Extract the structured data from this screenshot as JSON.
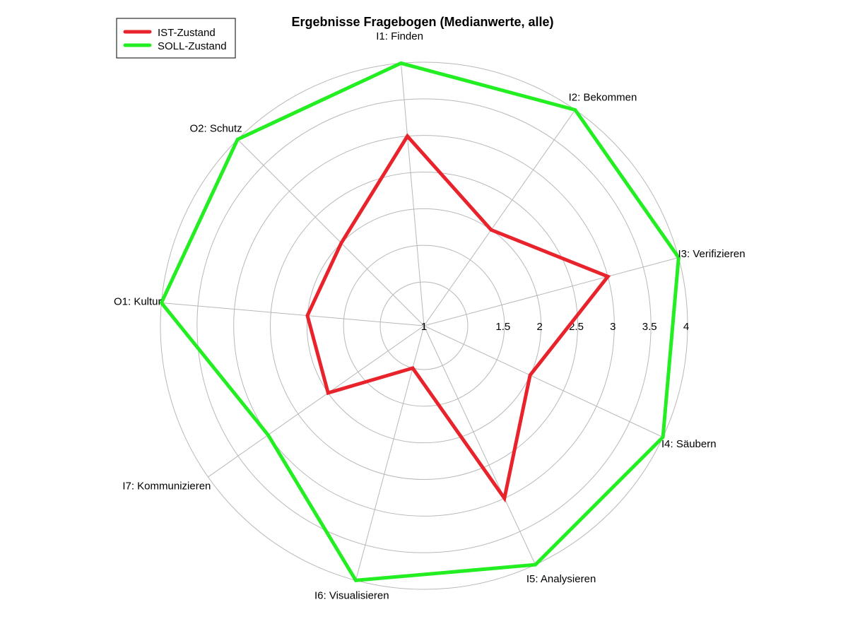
{
  "chart_data": {
    "type": "radar",
    "title": "Ergebnisse Fragebogen (Medianwerte, alle)",
    "categories": [
      "I1: Finden",
      "I2: Bekommen",
      "I3: Verifizieren",
      "I4: Säubern",
      "I5: Analysieren",
      "I6: Visualisieren",
      "I7: Kommunizieren",
      "O1: Kultur",
      "O2: Schutz"
    ],
    "r_range": [
      1,
      4
    ],
    "r_ticks": [
      "1",
      "1.5",
      "2",
      "2.5",
      "3",
      "3.5",
      "4"
    ],
    "grid": true,
    "legend": {
      "placement": "top-left"
    },
    "series": [
      {
        "name": "IST-Zustand",
        "color": "#e8232b",
        "values": [
          3,
          2,
          3,
          2,
          3,
          1,
          2,
          2,
          2
        ]
      },
      {
        "name": "SOLL-Zustand",
        "color": "#22ee22",
        "values": [
          4,
          4,
          4,
          4,
          4,
          4,
          3,
          4,
          4
        ]
      }
    ]
  }
}
